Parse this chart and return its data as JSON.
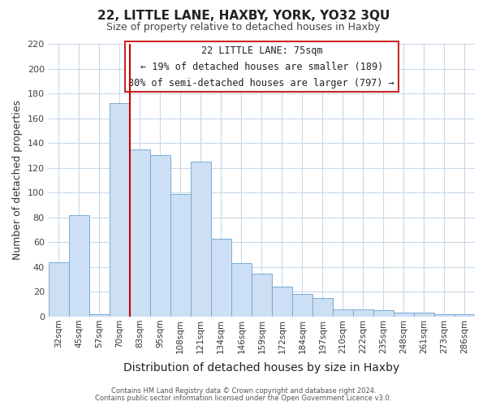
{
  "title": "22, LITTLE LANE, HAXBY, YORK, YO32 3QU",
  "subtitle": "Size of property relative to detached houses in Haxby",
  "xlabel": "Distribution of detached houses by size in Haxby",
  "ylabel": "Number of detached properties",
  "bar_labels": [
    "32sqm",
    "45sqm",
    "57sqm",
    "70sqm",
    "83sqm",
    "95sqm",
    "108sqm",
    "121sqm",
    "134sqm",
    "146sqm",
    "159sqm",
    "172sqm",
    "184sqm",
    "197sqm",
    "210sqm",
    "222sqm",
    "235sqm",
    "248sqm",
    "261sqm",
    "273sqm",
    "286sqm"
  ],
  "bar_values": [
    44,
    82,
    2,
    172,
    135,
    130,
    99,
    125,
    63,
    43,
    35,
    24,
    18,
    15,
    6,
    6,
    5,
    3,
    3,
    2,
    2
  ],
  "bar_color": "#ccdff5",
  "bar_edge_color": "#7aaad4",
  "vline_color": "#cc0000",
  "ylim": [
    0,
    220
  ],
  "yticks": [
    0,
    20,
    40,
    60,
    80,
    100,
    120,
    140,
    160,
    180,
    200,
    220
  ],
  "annotation_title": "22 LITTLE LANE: 75sqm",
  "annotation_line1": "← 19% of detached houses are smaller (189)",
  "annotation_line2": "80% of semi-detached houses are larger (797) →",
  "footnote1": "Contains HM Land Registry data © Crown copyright and database right 2024.",
  "footnote2": "Contains public sector information licensed under the Open Government Licence v3.0.",
  "background_color": "#ffffff",
  "grid_color": "#c8d8e8"
}
